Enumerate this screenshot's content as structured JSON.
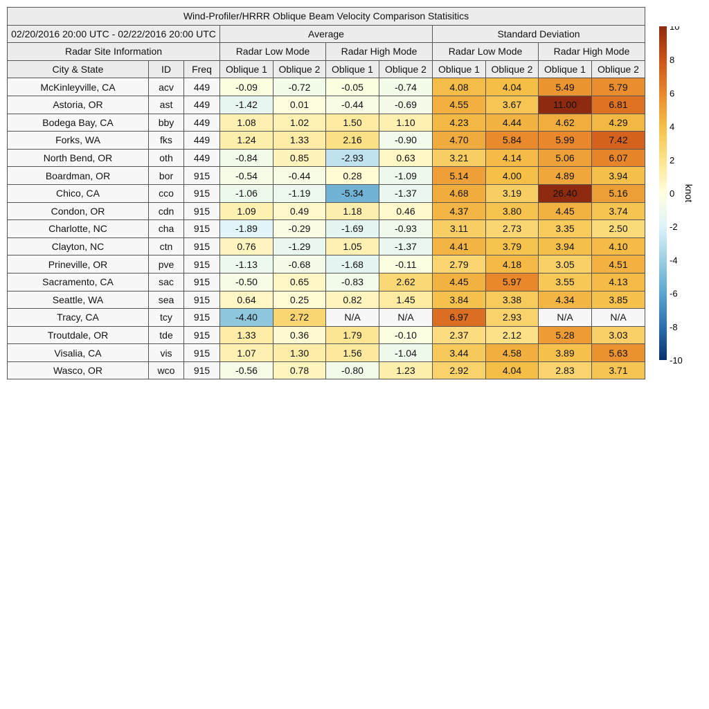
{
  "table": {
    "title": "Wind-Profiler/HRRR Oblique Beam Velocity Comparison Statisitics",
    "date_range": "02/20/2016 20:00 UTC - 02/22/2016 20:00 UTC",
    "group_average": "Average",
    "group_std": "Standard Deviation",
    "radar_site_info": "Radar Site Information",
    "mode_low": "Radar Low Mode",
    "mode_high": "Radar High Mode",
    "col_city": "City & State",
    "col_id": "ID",
    "col_freq": "Freq",
    "col_ob1": "Oblique 1",
    "col_ob2": "Oblique 2"
  },
  "colorbar": {
    "label": "knot",
    "min": -10,
    "max": 10,
    "ticks": [
      "10",
      "8",
      "6",
      "4",
      "2",
      "0",
      "-2",
      "-4",
      "-6",
      "-8",
      "-10"
    ]
  },
  "colors": {
    "stops": [
      "#08306b",
      "#2c6faf",
      "#5aa5cf",
      "#9ccfe2",
      "#dff3f8",
      "#ffffe0",
      "#fde38a",
      "#f5bf48",
      "#e8872b",
      "#cc5318",
      "#8e2a0f"
    ],
    "na": "#f7f7f7",
    "header": "#ececec"
  },
  "chart_data": {
    "type": "heatmap",
    "title": "Wind-Profiler/HRRR Oblique Beam Velocity Comparison Statisitics",
    "units": "knot",
    "columns": [
      "Average / Radar Low Mode / Oblique 1",
      "Average / Radar Low Mode / Oblique 2",
      "Average / Radar High Mode / Oblique 1",
      "Average / Radar High Mode / Oblique 2",
      "Standard Deviation / Radar Low Mode / Oblique 1",
      "Standard Deviation / Radar Low Mode / Oblique 2",
      "Standard Deviation / Radar High Mode / Oblique 1",
      "Standard Deviation / Radar High Mode / Oblique 2"
    ],
    "rows": [
      {
        "city": "McKinleyville, CA",
        "id": "acv",
        "freq": "449",
        "values": [
          "-0.09",
          "-0.72",
          "-0.05",
          "-0.74",
          "4.08",
          "4.04",
          "5.49",
          "5.79"
        ]
      },
      {
        "city": "Astoria, OR",
        "id": "ast",
        "freq": "449",
        "values": [
          "-1.42",
          "0.01",
          "-0.44",
          "-0.69",
          "4.55",
          "3.67",
          "11.00",
          "6.81"
        ]
      },
      {
        "city": "Bodega Bay, CA",
        "id": "bby",
        "freq": "449",
        "values": [
          "1.08",
          "1.02",
          "1.50",
          "1.10",
          "4.23",
          "4.44",
          "4.62",
          "4.29"
        ]
      },
      {
        "city": "Forks, WA",
        "id": "fks",
        "freq": "449",
        "values": [
          "1.24",
          "1.33",
          "2.16",
          "-0.90",
          "4.70",
          "5.84",
          "5.99",
          "7.42"
        ]
      },
      {
        "city": "North Bend, OR",
        "id": "oth",
        "freq": "449",
        "values": [
          "-0.84",
          "0.85",
          "-2.93",
          "0.63",
          "3.21",
          "4.14",
          "5.06",
          "6.07"
        ]
      },
      {
        "city": "Boardman, OR",
        "id": "bor",
        "freq": "915",
        "values": [
          "-0.54",
          "-0.44",
          "0.28",
          "-1.09",
          "5.14",
          "4.00",
          "4.89",
          "3.94"
        ]
      },
      {
        "city": "Chico, CA",
        "id": "cco",
        "freq": "915",
        "values": [
          "-1.06",
          "-1.19",
          "-5.34",
          "-1.37",
          "4.68",
          "3.19",
          "26.40",
          "5.16"
        ]
      },
      {
        "city": "Condon, OR",
        "id": "cdn",
        "freq": "915",
        "values": [
          "1.09",
          "0.49",
          "1.18",
          "0.46",
          "4.37",
          "3.80",
          "4.45",
          "3.74"
        ]
      },
      {
        "city": "Charlotte, NC",
        "id": "cha",
        "freq": "915",
        "values": [
          "-1.89",
          "-0.29",
          "-1.69",
          "-0.93",
          "3.11",
          "2.73",
          "3.35",
          "2.50"
        ]
      },
      {
        "city": "Clayton, NC",
        "id": "ctn",
        "freq": "915",
        "values": [
          "0.76",
          "-1.29",
          "1.05",
          "-1.37",
          "4.41",
          "3.79",
          "3.94",
          "4.10"
        ]
      },
      {
        "city": "Prineville, OR",
        "id": "pve",
        "freq": "915",
        "values": [
          "-1.13",
          "-0.68",
          "-1.68",
          "-0.11",
          "2.79",
          "4.18",
          "3.05",
          "4.51"
        ]
      },
      {
        "city": "Sacramento, CA",
        "id": "sac",
        "freq": "915",
        "values": [
          "-0.50",
          "0.65",
          "-0.83",
          "2.62",
          "4.45",
          "5.97",
          "3.55",
          "4.13"
        ]
      },
      {
        "city": "Seattle, WA",
        "id": "sea",
        "freq": "915",
        "values": [
          "0.64",
          "0.25",
          "0.82",
          "1.45",
          "3.84",
          "3.38",
          "4.34",
          "3.85"
        ]
      },
      {
        "city": "Tracy, CA",
        "id": "tcy",
        "freq": "915",
        "values": [
          "-4.40",
          "2.72",
          "N/A",
          "N/A",
          "6.97",
          "2.93",
          "N/A",
          "N/A"
        ]
      },
      {
        "city": "Troutdale, OR",
        "id": "tde",
        "freq": "915",
        "values": [
          "1.33",
          "0.36",
          "1.79",
          "-0.10",
          "2.37",
          "2.12",
          "5.28",
          "3.03"
        ]
      },
      {
        "city": "Visalia, CA",
        "id": "vis",
        "freq": "915",
        "values": [
          "1.07",
          "1.30",
          "1.56",
          "-1.04",
          "3.44",
          "4.58",
          "3.89",
          "5.63"
        ]
      },
      {
        "city": "Wasco, OR",
        "id": "wco",
        "freq": "915",
        "values": [
          "-0.56",
          "0.78",
          "-0.80",
          "1.23",
          "2.92",
          "4.04",
          "2.83",
          "3.71"
        ]
      }
    ]
  }
}
